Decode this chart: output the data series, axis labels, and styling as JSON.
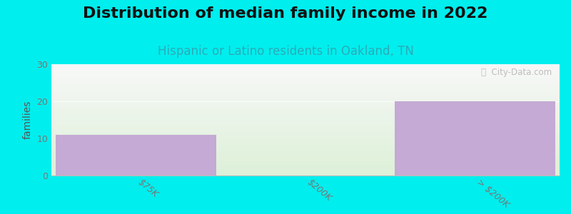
{
  "title": "Distribution of median family income in 2022",
  "subtitle": "Hispanic or Latino residents in Oakland, TN",
  "categories": [
    "$75K",
    "$200K",
    "> $200K"
  ],
  "values": [
    11,
    0,
    20
  ],
  "bar_color": "#c4aad4",
  "bg_color": "#00eeee",
  "plot_bg_top": "#f8f8f8",
  "plot_bg_bottom": "#ddf0d8",
  "ylabel": "families",
  "ylim": [
    0,
    30
  ],
  "yticks": [
    0,
    10,
    20,
    30
  ],
  "watermark": "ⓘ  City-Data.com",
  "title_fontsize": 16,
  "subtitle_fontsize": 12,
  "tick_fontsize": 9,
  "subtitle_color": "#2aacb8",
  "tick_color": "#777777",
  "title_color": "#111111"
}
